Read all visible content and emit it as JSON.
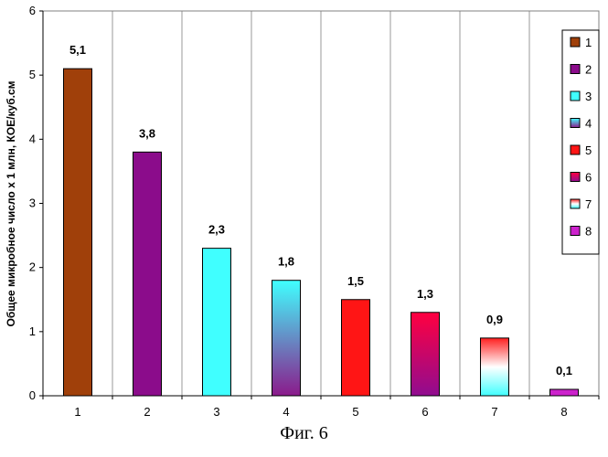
{
  "caption": "Фиг. 6",
  "chart_data": {
    "type": "bar",
    "categories": [
      "1",
      "2",
      "3",
      "4",
      "5",
      "6",
      "7",
      "8"
    ],
    "values": [
      5.1,
      3.8,
      2.3,
      1.8,
      1.5,
      1.3,
      0.9,
      0.1
    ],
    "data_labels": [
      "5,1",
      "3,8",
      "2,3",
      "1,8",
      "1,5",
      "1,3",
      "0,9",
      "0,1"
    ],
    "ylabel": "Общее микробное число x 1 млн, КОЕ/куб.см",
    "xlabel": "",
    "ylim": [
      0,
      6
    ],
    "yticks": [
      0,
      1,
      2,
      3,
      4,
      5,
      6
    ],
    "grid": "vertical",
    "legend_position": "right",
    "legend_entries": [
      "1",
      "2",
      "3",
      "4",
      "5",
      "6",
      "7",
      "8"
    ],
    "colors": [
      {
        "fill": "#A0400A"
      },
      {
        "fill": "#8B0C8B"
      },
      {
        "fill": "#40FFFF"
      },
      {
        "gradient": [
          "#40FFFF",
          "#8B1A8B"
        ]
      },
      {
        "fill": "#FF1515"
      },
      {
        "gradient": [
          "#FF0040",
          "#900C90"
        ]
      },
      {
        "gradient": [
          "#FF2020",
          "#FFFFFF",
          "#40FFFF"
        ]
      },
      {
        "fill": "#CC22CC"
      }
    ]
  }
}
